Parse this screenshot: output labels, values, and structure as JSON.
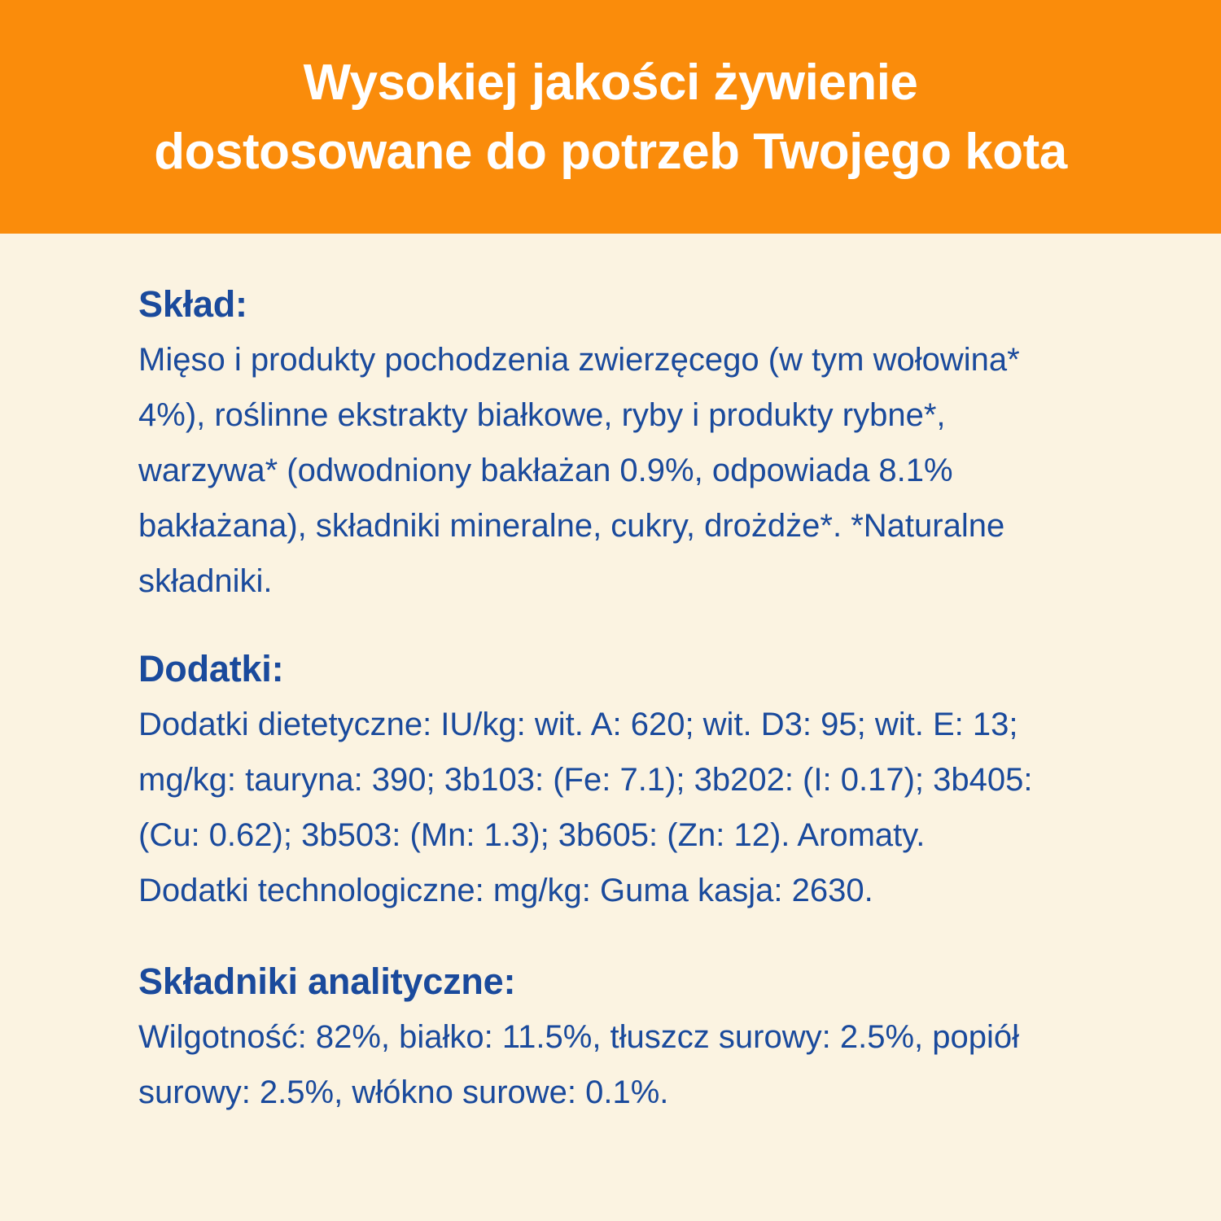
{
  "page": {
    "background_color": "#FBF3E1",
    "accent_orange": "#FA8C0B",
    "text_blue": "#1A4A9C",
    "title_color": "#FFFFFF"
  },
  "header": {
    "title_lines": [
      "Wysokiej jakości żywienie",
      "dostosowane do potrzeb Twojego kota"
    ]
  },
  "sections": [
    {
      "id": "sklad",
      "heading": "Skład:",
      "lines": [
        "Mięso i produkty pochodzenia zwierzęcego (w tym wołowina*",
        "4%), roślinne ekstrakty białkowe, ryby i produkty rybne*,",
        "warzywa* (odwodniony bakłażan 0.9%, odpowiada 8.1%",
        "bakłażana), składniki mineralne, cukry, drożdże*. *Naturalne",
        "składniki."
      ]
    },
    {
      "id": "dodatki",
      "heading": "Dodatki:",
      "lines": [
        "Dodatki dietetyczne: IU/kg: wit. A: 620; wit. D3: 95; wit. E: 13;",
        "mg/kg: tauryna: 390; 3b103: (Fe: 7.1); 3b202: (I: 0.17); 3b405:",
        "(Cu: 0.62); 3b503: (Mn: 1.3); 3b605: (Zn: 12). Aromaty.",
        "Dodatki technologiczne: mg/kg: Guma kasja: 2630."
      ]
    },
    {
      "id": "skladniki-analityczne",
      "heading": "Składniki analityczne:",
      "lines": [
        "Wilgotność: 82%, białko: 11.5%, tłuszcz surowy: 2.5%, popiół",
        "surowy: 2.5%, włókno surowe: 0.1%."
      ]
    }
  ]
}
